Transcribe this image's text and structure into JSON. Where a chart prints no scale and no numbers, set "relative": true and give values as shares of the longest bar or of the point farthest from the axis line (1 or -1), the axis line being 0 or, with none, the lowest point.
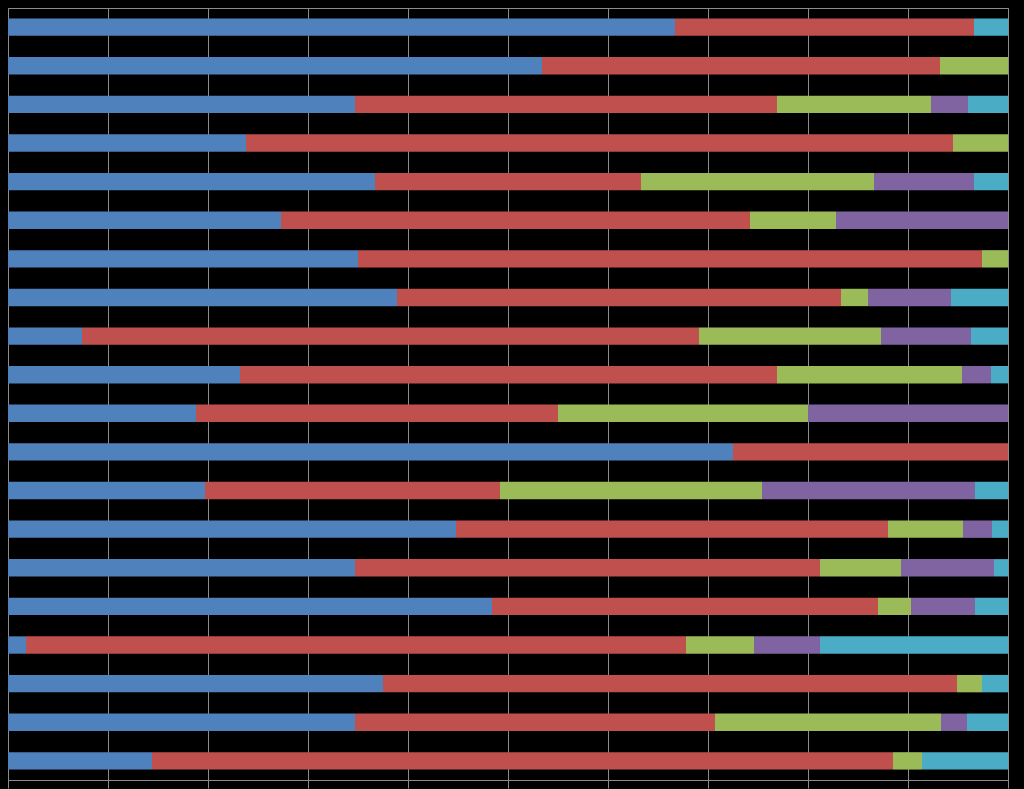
{
  "chart_data": {
    "type": "bar",
    "orientation": "horizontal",
    "stacked": true,
    "relative": true,
    "grid": "x",
    "categories": [
      null,
      null,
      null,
      null,
      null,
      null,
      null,
      null,
      null,
      null,
      null,
      null,
      null,
      null,
      null,
      null,
      null,
      null,
      null,
      null
    ],
    "series": [
      {
        "color": "#4f81bd",
        "values": [
          0.667,
          0.534,
          0.347,
          0.238,
          0.367,
          0.273,
          0.35,
          0.389,
          0.074,
          0.232,
          0.188,
          0.725,
          0.197,
          0.448,
          0.347,
          0.484,
          0.018,
          0.375,
          0.347,
          0.144
        ]
      },
      {
        "color": "#c0504d",
        "values": [
          0.299,
          0.398,
          0.422,
          0.707,
          0.266,
          0.469,
          0.624,
          0.444,
          0.617,
          0.537,
          0.362,
          0.275,
          0.295,
          0.432,
          0.465,
          0.386,
          0.66,
          0.574,
          0.36,
          0.741
        ]
      },
      {
        "color": "#9bbb59",
        "values": [
          null,
          0.068,
          0.154,
          0.055,
          0.233,
          0.086,
          0.026,
          0.027,
          0.182,
          0.185,
          0.25,
          null,
          0.262,
          0.075,
          0.081,
          0.033,
          0.068,
          0.025,
          0.226,
          0.029
        ]
      },
      {
        "color": "#8064a2",
        "values": [
          null,
          null,
          0.037,
          null,
          0.1,
          0.172,
          null,
          0.083,
          0.09,
          0.029,
          0.2,
          null,
          0.213,
          0.029,
          0.093,
          0.064,
          0.066,
          null,
          0.026,
          null
        ]
      },
      {
        "color": "#4bacc6",
        "values": [
          0.034,
          null,
          0.04,
          null,
          0.034,
          null,
          null,
          0.057,
          0.037,
          0.017,
          null,
          null,
          0.033,
          0.016,
          0.014,
          0.033,
          0.188,
          0.026,
          0.041,
          0.086
        ]
      }
    ]
  }
}
